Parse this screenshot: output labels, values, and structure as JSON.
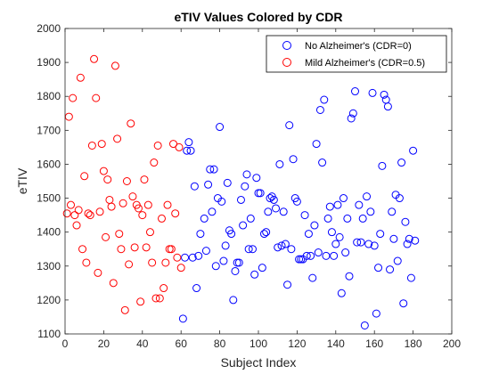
{
  "chart_data": {
    "type": "scatter",
    "title": "eTIV Values Colored by CDR",
    "xlabel": "Subject Index",
    "ylabel": "eTIV",
    "xlim": [
      0,
      200
    ],
    "ylim": [
      1100,
      2000
    ],
    "xticks": [
      0,
      20,
      40,
      60,
      80,
      100,
      120,
      140,
      160,
      180,
      200
    ],
    "yticks": [
      1100,
      1200,
      1300,
      1400,
      1500,
      1600,
      1700,
      1800,
      1900,
      2000
    ],
    "grid": false,
    "legend_position": "top-right",
    "series": [
      {
        "name": "No Alzheimer's (CDR=0)",
        "color": "#0000ff",
        "marker": "circle-open",
        "points": [
          [
            61,
            1145
          ],
          [
            62,
            1325
          ],
          [
            63,
            1640
          ],
          [
            64,
            1665
          ],
          [
            65,
            1640
          ],
          [
            66,
            1325
          ],
          [
            67,
            1535
          ],
          [
            68,
            1235
          ],
          [
            69,
            1330
          ],
          [
            70,
            1395
          ],
          [
            72,
            1440
          ],
          [
            73,
            1345
          ],
          [
            74,
            1540
          ],
          [
            75,
            1585
          ],
          [
            76,
            1460
          ],
          [
            77,
            1585
          ],
          [
            78,
            1300
          ],
          [
            79,
            1500
          ],
          [
            80,
            1710
          ],
          [
            81,
            1490
          ],
          [
            82,
            1315
          ],
          [
            83,
            1360
          ],
          [
            84,
            1545
          ],
          [
            85,
            1405
          ],
          [
            86,
            1395
          ],
          [
            87,
            1200
          ],
          [
            88,
            1285
          ],
          [
            89,
            1310
          ],
          [
            90,
            1310
          ],
          [
            91,
            1495
          ],
          [
            92,
            1420
          ],
          [
            93,
            1535
          ],
          [
            94,
            1570
          ],
          [
            95,
            1350
          ],
          [
            96,
            1440
          ],
          [
            97,
            1350
          ],
          [
            98,
            1275
          ],
          [
            99,
            1560
          ],
          [
            100,
            1515
          ],
          [
            101,
            1515
          ],
          [
            102,
            1295
          ],
          [
            103,
            1395
          ],
          [
            104,
            1400
          ],
          [
            105,
            1460
          ],
          [
            106,
            1500
          ],
          [
            107,
            1505
          ],
          [
            108,
            1495
          ],
          [
            109,
            1470
          ],
          [
            110,
            1355
          ],
          [
            111,
            1600
          ],
          [
            112,
            1360
          ],
          [
            113,
            1460
          ],
          [
            114,
            1365
          ],
          [
            115,
            1245
          ],
          [
            116,
            1715
          ],
          [
            117,
            1350
          ],
          [
            118,
            1615
          ],
          [
            119,
            1500
          ],
          [
            120,
            1490
          ],
          [
            121,
            1320
          ],
          [
            122,
            1320
          ],
          [
            123,
            1320
          ],
          [
            124,
            1450
          ],
          [
            125,
            1330
          ],
          [
            126,
            1395
          ],
          [
            127,
            1330
          ],
          [
            128,
            1265
          ],
          [
            129,
            1420
          ],
          [
            130,
            1660
          ],
          [
            131,
            1340
          ],
          [
            132,
            1760
          ],
          [
            133,
            1605
          ],
          [
            134,
            1790
          ],
          [
            135,
            1330
          ],
          [
            136,
            1440
          ],
          [
            137,
            1475
          ],
          [
            138,
            1400
          ],
          [
            139,
            1330
          ],
          [
            140,
            1365
          ],
          [
            141,
            1480
          ],
          [
            142,
            1385
          ],
          [
            143,
            1220
          ],
          [
            144,
            1500
          ],
          [
            145,
            1340
          ],
          [
            146,
            1440
          ],
          [
            147,
            1270
          ],
          [
            148,
            1735
          ],
          [
            149,
            1750
          ],
          [
            150,
            1815
          ],
          [
            151,
            1370
          ],
          [
            152,
            1480
          ],
          [
            153,
            1370
          ],
          [
            154,
            1440
          ],
          [
            155,
            1125
          ],
          [
            156,
            1505
          ],
          [
            157,
            1365
          ],
          [
            158,
            1460
          ],
          [
            159,
            1810
          ],
          [
            160,
            1360
          ],
          [
            161,
            1160
          ],
          [
            162,
            1295
          ],
          [
            163,
            1395
          ],
          [
            164,
            1595
          ],
          [
            165,
            1805
          ],
          [
            166,
            1790
          ],
          [
            167,
            1770
          ],
          [
            168,
            1290
          ],
          [
            169,
            1460
          ],
          [
            170,
            1380
          ],
          [
            171,
            1510
          ],
          [
            172,
            1315
          ],
          [
            173,
            1500
          ],
          [
            174,
            1605
          ],
          [
            175,
            1190
          ],
          [
            176,
            1430
          ],
          [
            177,
            1365
          ],
          [
            178,
            1380
          ],
          [
            179,
            1265
          ],
          [
            180,
            1640
          ],
          [
            181,
            1375
          ]
        ]
      },
      {
        "name": "Mild Alzheimer's (CDR=0.5)",
        "color": "#ff0000",
        "marker": "circle-open",
        "points": [
          [
            1,
            1455
          ],
          [
            2,
            1740
          ],
          [
            3,
            1480
          ],
          [
            4,
            1795
          ],
          [
            5,
            1450
          ],
          [
            6,
            1420
          ],
          [
            7,
            1465
          ],
          [
            8,
            1855
          ],
          [
            9,
            1350
          ],
          [
            10,
            1565
          ],
          [
            11,
            1310
          ],
          [
            12,
            1455
          ],
          [
            13,
            1450
          ],
          [
            14,
            1655
          ],
          [
            15,
            1910
          ],
          [
            16,
            1795
          ],
          [
            17,
            1280
          ],
          [
            18,
            1460
          ],
          [
            19,
            1660
          ],
          [
            20,
            1580
          ],
          [
            21,
            1385
          ],
          [
            22,
            1555
          ],
          [
            23,
            1495
          ],
          [
            24,
            1475
          ],
          [
            25,
            1250
          ],
          [
            26,
            1890
          ],
          [
            27,
            1675
          ],
          [
            28,
            1395
          ],
          [
            29,
            1350
          ],
          [
            30,
            1485
          ],
          [
            31,
            1170
          ],
          [
            32,
            1550
          ],
          [
            33,
            1305
          ],
          [
            34,
            1720
          ],
          [
            35,
            1505
          ],
          [
            36,
            1355
          ],
          [
            37,
            1480
          ],
          [
            38,
            1470
          ],
          [
            39,
            1195
          ],
          [
            40,
            1450
          ],
          [
            41,
            1555
          ],
          [
            42,
            1355
          ],
          [
            43,
            1480
          ],
          [
            44,
            1400
          ],
          [
            45,
            1310
          ],
          [
            46,
            1605
          ],
          [
            47,
            1205
          ],
          [
            48,
            1655
          ],
          [
            49,
            1205
          ],
          [
            50,
            1440
          ],
          [
            51,
            1235
          ],
          [
            52,
            1310
          ],
          [
            53,
            1480
          ],
          [
            54,
            1350
          ],
          [
            55,
            1350
          ],
          [
            56,
            1660
          ],
          [
            57,
            1455
          ],
          [
            58,
            1325
          ],
          [
            59,
            1650
          ],
          [
            60,
            1295
          ]
        ]
      }
    ]
  }
}
